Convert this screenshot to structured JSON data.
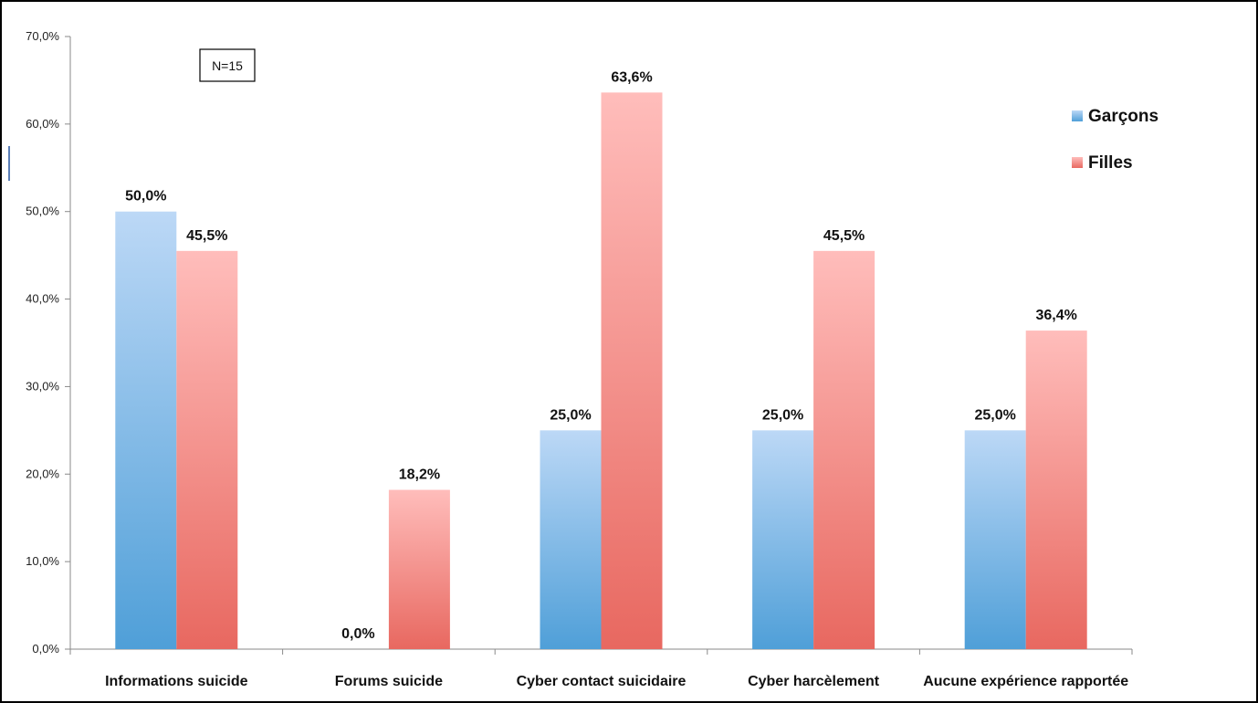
{
  "chart_data": {
    "type": "bar",
    "categories": [
      "Informations suicide",
      "Forums suicide",
      "Cyber contact suicidaire",
      "Cyber harcèlement",
      "Aucune expérience rapportée"
    ],
    "series": [
      {
        "name": "Garçons",
        "values": [
          50.0,
          0.0,
          25.0,
          25.0,
          25.0
        ],
        "labels": [
          "50,0%",
          "0,0%",
          "25,0%",
          "25,0%",
          "25,0%"
        ],
        "color_top": "#bcd8f6",
        "color_bottom": "#4f9fd8"
      },
      {
        "name": "Filles",
        "values": [
          45.5,
          18.2,
          63.6,
          45.5,
          36.4
        ],
        "labels": [
          "45,5%",
          "18,2%",
          "63,6%",
          "45,5%",
          "36,4%"
        ],
        "color_top": "#ffbdbb",
        "color_bottom": "#e86860"
      }
    ],
    "title": "",
    "xlabel": "",
    "ylabel": "",
    "ylim": [
      0,
      70
    ],
    "yticks": [
      0,
      10,
      20,
      30,
      40,
      50,
      60,
      70
    ],
    "ytick_labels": [
      "0,0%",
      "10,0%",
      "20,0%",
      "30,0%",
      "40,0%",
      "50,0%",
      "60,0%",
      "70,0%"
    ],
    "legend_position": "top-right",
    "grid": false,
    "annotation": "N=15"
  }
}
